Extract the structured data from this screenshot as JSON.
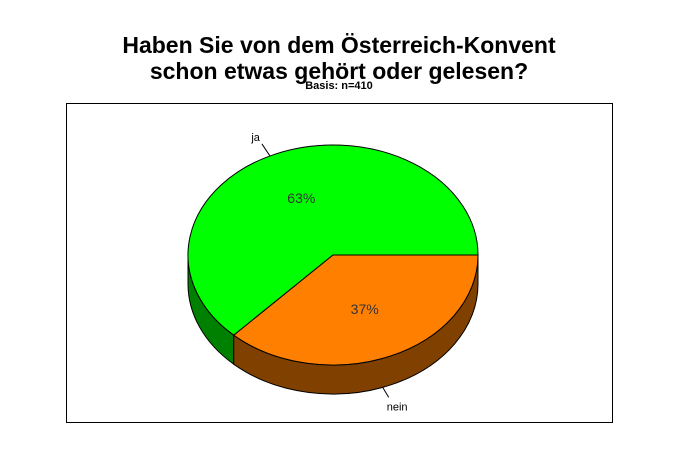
{
  "title_line1": "Haben Sie von dem Österreich-Konvent",
  "title_line2": "schon etwas gehört oder gelesen?",
  "subtitle": "Basis: n=410",
  "chart_data": {
    "type": "pie",
    "title": "Haben Sie von dem Österreich-Konvent schon etwas gehört oder gelesen?",
    "subtitle": "Basis: n=410",
    "slices": [
      {
        "label": "ja",
        "value": 63,
        "value_label": "63%",
        "color": "#00FF00",
        "side_color": "#008000"
      },
      {
        "label": "nein",
        "value": 37,
        "value_label": "37%",
        "color": "#FF8000",
        "side_color": "#804000"
      }
    ]
  }
}
